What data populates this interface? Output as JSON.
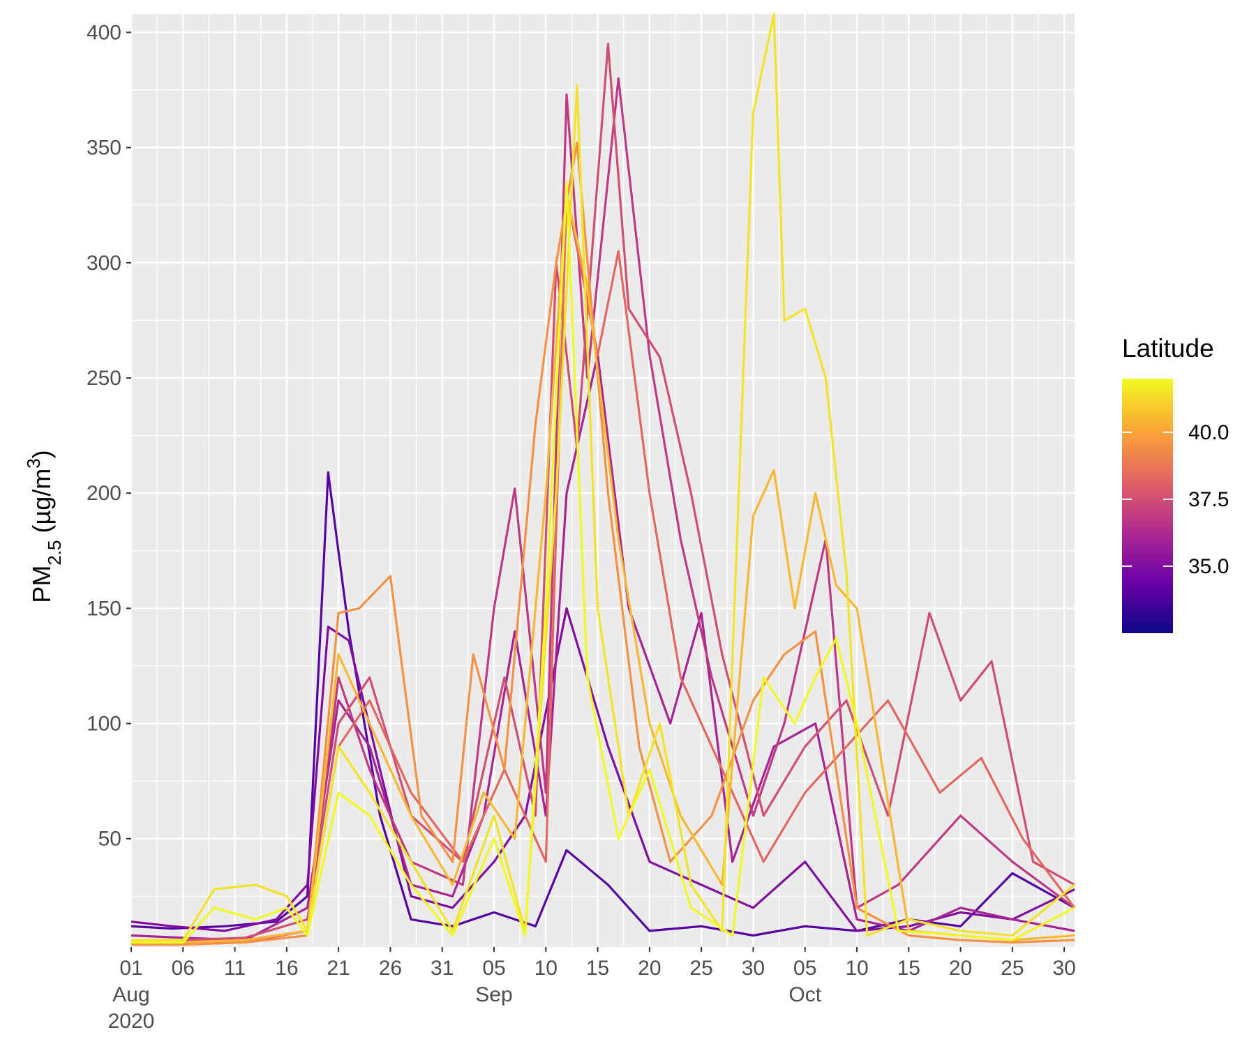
{
  "chart_data": {
    "type": "line",
    "title": "",
    "xlabel": "",
    "ylabel": {
      "prefix": "PM",
      "subscript": "2.5",
      "unit_open": " (µg/m",
      "superscript": "3",
      "unit_close": ")"
    },
    "xlim": [
      "2020-08-01",
      "2020-10-31"
    ],
    "ylim": [
      3,
      408
    ],
    "y_ticks": [
      50,
      100,
      150,
      200,
      250,
      300,
      350,
      400
    ],
    "x_ticks": [
      {
        "date": "2020-08-01",
        "label": "01",
        "month": "Aug",
        "year": "2020"
      },
      {
        "date": "2020-08-06",
        "label": "06"
      },
      {
        "date": "2020-08-11",
        "label": "11"
      },
      {
        "date": "2020-08-16",
        "label": "16"
      },
      {
        "date": "2020-08-21",
        "label": "21"
      },
      {
        "date": "2020-08-26",
        "label": "26"
      },
      {
        "date": "2020-08-31",
        "label": "31"
      },
      {
        "date": "2020-09-05",
        "label": "05",
        "month": "Sep"
      },
      {
        "date": "2020-09-10",
        "label": "10"
      },
      {
        "date": "2020-09-15",
        "label": "15"
      },
      {
        "date": "2020-09-20",
        "label": "20"
      },
      {
        "date": "2020-09-25",
        "label": "25"
      },
      {
        "date": "2020-09-30",
        "label": "30"
      },
      {
        "date": "2020-10-05",
        "label": "05",
        "month": "Oct"
      },
      {
        "date": "2020-10-10",
        "label": "10"
      },
      {
        "date": "2020-10-15",
        "label": "15"
      },
      {
        "date": "2020-10-20",
        "label": "20"
      },
      {
        "date": "2020-10-25",
        "label": "25"
      },
      {
        "date": "2020-10-30",
        "label": "30"
      }
    ],
    "grid": true,
    "panel_background": "#ebebeb",
    "legend": {
      "title": "Latitude",
      "position": "right",
      "range": [
        32.5,
        42.0
      ],
      "ticks": [
        35.0,
        37.5,
        40.0
      ],
      "tick_labels": [
        "35.0",
        "37.5",
        "40.0"
      ],
      "colors": [
        "#0d0887",
        "#6a00a8",
        "#b12a90",
        "#e16462",
        "#fca636",
        "#f0f921"
      ]
    },
    "series": [
      {
        "latitude": 34.0,
        "x": [
          "2020-08-01",
          "2020-08-05",
          "2020-08-10",
          "2020-08-15",
          "2020-08-18",
          "2020-08-20",
          "2020-08-22",
          "2020-08-25",
          "2020-08-28",
          "2020-09-01",
          "2020-09-05",
          "2020-09-09",
          "2020-09-12",
          "2020-09-16",
          "2020-09-20",
          "2020-09-25",
          "2020-09-30",
          "2020-10-05",
          "2020-10-10",
          "2020-10-15",
          "2020-10-20",
          "2020-10-25",
          "2020-10-31"
        ],
        "y": [
          12,
          11,
          12,
          14,
          25,
          209,
          140,
          60,
          15,
          12,
          18,
          12,
          45,
          30,
          10,
          12,
          8,
          12,
          10,
          15,
          12,
          35,
          20
        ]
      },
      {
        "latitude": 35.0,
        "x": [
          "2020-08-01",
          "2020-08-05",
          "2020-08-10",
          "2020-08-15",
          "2020-08-18",
          "2020-08-20",
          "2020-08-22",
          "2020-08-25",
          "2020-08-28",
          "2020-09-01",
          "2020-09-05",
          "2020-09-08",
          "2020-09-12",
          "2020-09-16",
          "2020-09-20",
          "2020-09-25",
          "2020-09-30",
          "2020-10-05",
          "2020-10-10",
          "2020-10-15",
          "2020-10-20",
          "2020-10-25",
          "2020-10-31"
        ],
        "y": [
          14,
          12,
          10,
          15,
          30,
          142,
          136,
          80,
          25,
          20,
          40,
          60,
          150,
          90,
          40,
          30,
          20,
          40,
          10,
          12,
          18,
          15,
          28
        ]
      },
      {
        "latitude": 36.0,
        "x": [
          "2020-08-01",
          "2020-08-06",
          "2020-08-12",
          "2020-08-18",
          "2020-08-21",
          "2020-08-24",
          "2020-08-28",
          "2020-09-01",
          "2020-09-04",
          "2020-09-07",
          "2020-09-10",
          "2020-09-12",
          "2020-09-15",
          "2020-09-18",
          "2020-09-22",
          "2020-09-25",
          "2020-09-28",
          "2020-10-02",
          "2020-10-06",
          "2020-10-10",
          "2020-10-15",
          "2020-10-20",
          "2020-10-25",
          "2020-10-31"
        ],
        "y": [
          8,
          7,
          6,
          20,
          110,
          90,
          30,
          25,
          60,
          140,
          60,
          200,
          260,
          150,
          100,
          148,
          40,
          90,
          100,
          15,
          10,
          20,
          15,
          10
        ]
      },
      {
        "latitude": 36.8,
        "x": [
          "2020-08-01",
          "2020-08-06",
          "2020-08-12",
          "2020-08-18",
          "2020-08-21",
          "2020-08-24",
          "2020-08-28",
          "2020-09-02",
          "2020-09-05",
          "2020-09-07",
          "2020-09-10",
          "2020-09-12",
          "2020-09-14",
          "2020-09-17",
          "2020-09-20",
          "2020-09-23",
          "2020-09-26",
          "2020-09-30",
          "2020-10-03",
          "2020-10-07",
          "2020-10-10",
          "2020-10-14",
          "2020-10-20",
          "2020-10-25",
          "2020-10-31"
        ],
        "y": [
          5,
          5,
          6,
          10,
          120,
          80,
          40,
          30,
          150,
          202,
          70,
          373,
          250,
          380,
          260,
          180,
          120,
          60,
          100,
          180,
          20,
          30,
          60,
          40,
          20
        ]
      },
      {
        "latitude": 37.5,
        "x": [
          "2020-08-01",
          "2020-08-06",
          "2020-08-12",
          "2020-08-18",
          "2020-08-21",
          "2020-08-24",
          "2020-08-28",
          "2020-09-02",
          "2020-09-06",
          "2020-09-09",
          "2020-09-11",
          "2020-09-13",
          "2020-09-16",
          "2020-09-18",
          "2020-09-21",
          "2020-09-24",
          "2020-09-27",
          "2020-10-01",
          "2020-10-05",
          "2020-10-09",
          "2020-10-13",
          "2020-10-17",
          "2020-10-20",
          "2020-10-23",
          "2020-10-27",
          "2020-10-31"
        ],
        "y": [
          6,
          6,
          7,
          15,
          100,
          120,
          60,
          40,
          120,
          60,
          300,
          220,
          395,
          280,
          259,
          200,
          130,
          60,
          90,
          110,
          60,
          148,
          110,
          127,
          40,
          30
        ]
      },
      {
        "latitude": 38.3,
        "x": [
          "2020-08-01",
          "2020-08-06",
          "2020-08-12",
          "2020-08-18",
          "2020-08-21",
          "2020-08-24",
          "2020-08-28",
          "2020-09-02",
          "2020-09-06",
          "2020-09-10",
          "2020-09-12",
          "2020-09-15",
          "2020-09-17",
          "2020-09-20",
          "2020-09-23",
          "2020-09-27",
          "2020-10-01",
          "2020-10-05",
          "2020-10-09",
          "2020-10-13",
          "2020-10-18",
          "2020-10-22",
          "2020-10-26",
          "2020-10-31"
        ],
        "y": [
          5,
          5,
          5,
          10,
          90,
          110,
          70,
          40,
          80,
          40,
          330,
          260,
          305,
          200,
          120,
          80,
          40,
          70,
          90,
          110,
          70,
          85,
          50,
          20
        ]
      },
      {
        "latitude": 39.5,
        "x": [
          "2020-08-01",
          "2020-08-06",
          "2020-08-12",
          "2020-08-18",
          "2020-08-21",
          "2020-08-23",
          "2020-08-26",
          "2020-08-29",
          "2020-09-01",
          "2020-09-03",
          "2020-09-06",
          "2020-09-09",
          "2020-09-11",
          "2020-09-13",
          "2020-09-16",
          "2020-09-19",
          "2020-09-22",
          "2020-09-26",
          "2020-09-30",
          "2020-10-03",
          "2020-10-06",
          "2020-10-10",
          "2020-10-15",
          "2020-10-20",
          "2020-10-25",
          "2020-10-31"
        ],
        "y": [
          4,
          4,
          5,
          8,
          148,
          150,
          164,
          60,
          40,
          130,
          80,
          230,
          300,
          352,
          200,
          90,
          40,
          60,
          110,
          130,
          140,
          20,
          8,
          6,
          5,
          6
        ]
      },
      {
        "latitude": 40.5,
        "x": [
          "2020-08-01",
          "2020-08-06",
          "2020-08-12",
          "2020-08-18",
          "2020-08-21",
          "2020-08-24",
          "2020-08-28",
          "2020-09-01",
          "2020-09-04",
          "2020-09-07",
          "2020-09-10",
          "2020-09-12",
          "2020-09-14",
          "2020-09-17",
          "2020-09-20",
          "2020-09-23",
          "2020-09-27",
          "2020-09-30",
          "2020-10-02",
          "2020-10-04",
          "2020-10-06",
          "2020-10-08",
          "2020-10-10",
          "2020-10-15",
          "2020-10-20",
          "2020-10-25",
          "2020-10-31"
        ],
        "y": [
          5,
          5,
          6,
          10,
          130,
          100,
          60,
          30,
          70,
          50,
          200,
          330,
          290,
          180,
          100,
          60,
          30,
          190,
          210,
          150,
          200,
          160,
          150,
          10,
          8,
          6,
          8
        ]
      },
      {
        "latitude": 41.5,
        "x": [
          "2020-08-01",
          "2020-08-06",
          "2020-08-09",
          "2020-08-13",
          "2020-08-16",
          "2020-08-18",
          "2020-08-21",
          "2020-08-24",
          "2020-08-28",
          "2020-09-01",
          "2020-09-05",
          "2020-09-08",
          "2020-09-11",
          "2020-09-13",
          "2020-09-15",
          "2020-09-18",
          "2020-09-21",
          "2020-09-24",
          "2020-09-27",
          "2020-09-30",
          "2020-10-02",
          "2020-10-03",
          "2020-10-05",
          "2020-10-07",
          "2020-10-09",
          "2020-10-11",
          "2020-10-15",
          "2020-10-20",
          "2020-10-25",
          "2020-10-31"
        ],
        "y": [
          6,
          6,
          28,
          30,
          25,
          10,
          90,
          70,
          40,
          10,
          60,
          10,
          200,
          377,
          150,
          60,
          100,
          30,
          10,
          365,
          408,
          275,
          280,
          250,
          165,
          8,
          15,
          10,
          8,
          30
        ]
      },
      {
        "latitude": 42.0,
        "x": [
          "2020-08-01",
          "2020-08-06",
          "2020-08-09",
          "2020-08-13",
          "2020-08-16",
          "2020-08-18",
          "2020-08-21",
          "2020-08-24",
          "2020-08-28",
          "2020-09-01",
          "2020-09-05",
          "2020-09-08",
          "2020-09-10",
          "2020-09-12",
          "2020-09-14",
          "2020-09-17",
          "2020-09-20",
          "2020-09-24",
          "2020-09-28",
          "2020-10-01",
          "2020-10-04",
          "2020-10-06",
          "2020-10-08",
          "2020-10-10",
          "2020-10-14",
          "2020-10-20",
          "2020-10-25",
          "2020-10-31"
        ],
        "y": [
          5,
          5,
          20,
          15,
          20,
          8,
          70,
          60,
          30,
          8,
          50,
          8,
          150,
          335,
          120,
          50,
          80,
          20,
          8,
          120,
          100,
          120,
          137,
          100,
          10,
          8,
          6,
          20
        ]
      }
    ]
  }
}
